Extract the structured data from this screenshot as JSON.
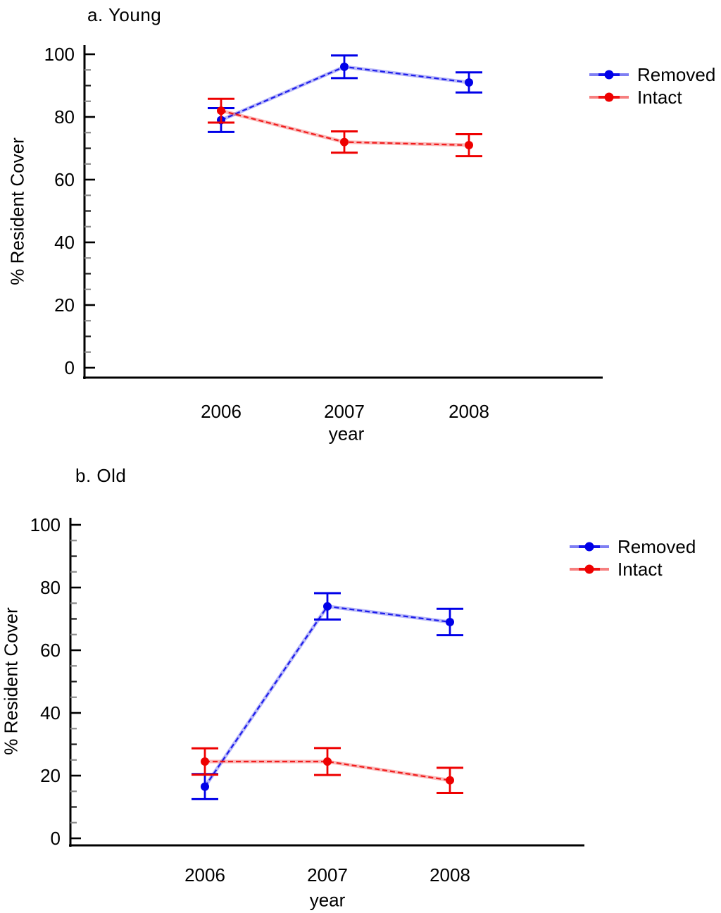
{
  "chart_data": [
    {
      "type": "line",
      "title": "a. Young",
      "xlabel": "year",
      "ylabel": "% Resident Cover",
      "categories": [
        "2006",
        "2007",
        "2008"
      ],
      "ylim": [
        0,
        100
      ],
      "ytick_interval": 20,
      "yminor_interval": 5,
      "grid": false,
      "error_bars": true,
      "legend_position": "upper right",
      "series": [
        {
          "name": "Removed",
          "color": "#0000e8",
          "values": [
            79,
            96,
            91
          ],
          "errors": [
            3.8,
            3.6,
            3.2
          ]
        },
        {
          "name": "Intact",
          "color": "#ee0000",
          "values": [
            82,
            72,
            71
          ],
          "errors": [
            3.8,
            3.4,
            3.5
          ]
        }
      ]
    },
    {
      "type": "line",
      "title": "b. Old",
      "xlabel": "year",
      "ylabel": "% Resident Cover",
      "categories": [
        "2006",
        "2007",
        "2008"
      ],
      "ylim": [
        0,
        100
      ],
      "ytick_interval": 20,
      "yminor_interval": 5,
      "grid": false,
      "error_bars": true,
      "legend_position": "upper right",
      "series": [
        {
          "name": "Removed",
          "color": "#0000e8",
          "values": [
            16.5,
            74,
            69
          ],
          "errors": [
            4.0,
            4.2,
            4.2
          ]
        },
        {
          "name": "Intact",
          "color": "#ee0000",
          "values": [
            24.5,
            24.5,
            18.5
          ],
          "errors": [
            4.2,
            4.3,
            4.0
          ]
        }
      ]
    }
  ]
}
